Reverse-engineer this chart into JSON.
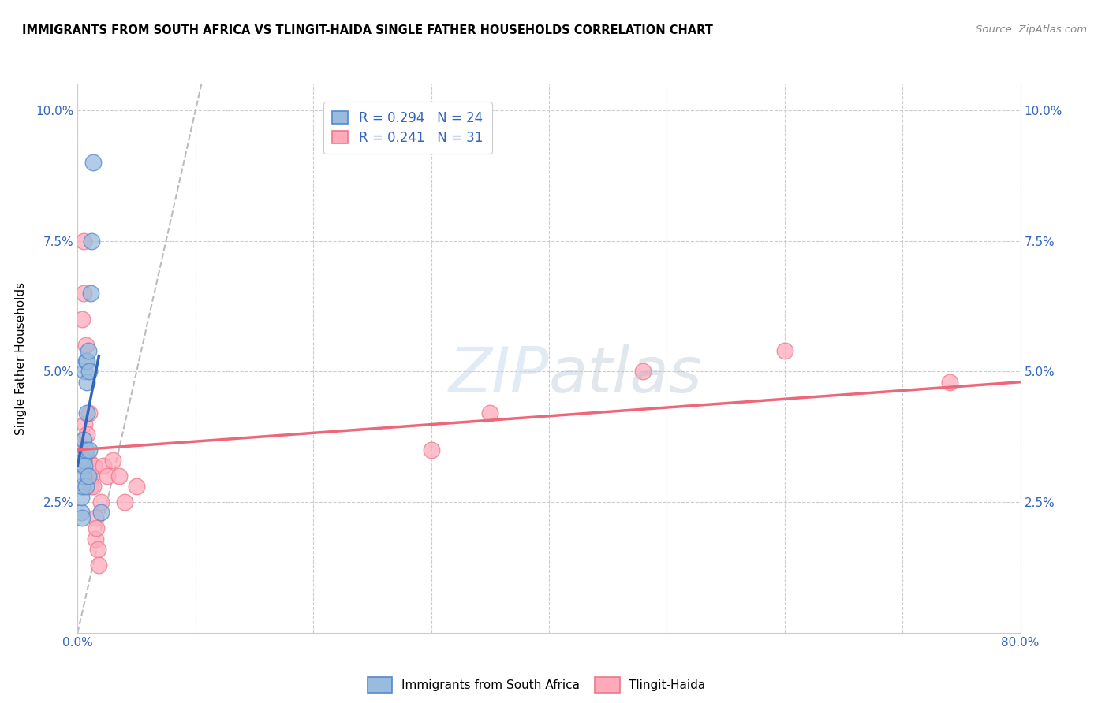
{
  "title": "IMMIGRANTS FROM SOUTH AFRICA VS TLINGIT-HAIDA SINGLE FATHER HOUSEHOLDS CORRELATION CHART",
  "source": "Source: ZipAtlas.com",
  "ylabel": "Single Father Households",
  "xlim": [
    0.0,
    0.8
  ],
  "ylim": [
    0.0,
    0.105
  ],
  "xticks": [
    0.0,
    0.1,
    0.2,
    0.3,
    0.4,
    0.5,
    0.6,
    0.7,
    0.8
  ],
  "xticklabels": [
    "0.0%",
    "",
    "",
    "",
    "",
    "",
    "",
    "",
    "80.0%"
  ],
  "yticks": [
    0.025,
    0.05,
    0.075,
    0.1
  ],
  "yticklabels": [
    "2.5%",
    "5.0%",
    "7.5%",
    "10.0%"
  ],
  "legend_r1": "0.294",
  "legend_n1": "24",
  "legend_r2": "0.241",
  "legend_n2": "31",
  "legend_label1": "Immigrants from South Africa",
  "legend_label2": "Tlingit-Haida",
  "color_blue_fill": "#99BBDD",
  "color_blue_edge": "#5588CC",
  "color_pink_fill": "#FFAABB",
  "color_pink_edge": "#EE7788",
  "color_line_blue": "#3366BB",
  "color_line_pink": "#EE6677",
  "color_diag": "#BBBBBB",
  "watermark_color": "#C5D8EC",
  "blue_x": [
    0.003,
    0.003,
    0.004,
    0.004,
    0.004,
    0.005,
    0.005,
    0.005,
    0.006,
    0.006,
    0.007,
    0.007,
    0.007,
    0.008,
    0.008,
    0.008,
    0.009,
    0.009,
    0.01,
    0.01,
    0.011,
    0.012,
    0.013,
    0.02
  ],
  "blue_y": [
    0.023,
    0.026,
    0.022,
    0.028,
    0.032,
    0.03,
    0.033,
    0.037,
    0.032,
    0.05,
    0.028,
    0.035,
    0.052,
    0.042,
    0.048,
    0.052,
    0.03,
    0.054,
    0.035,
    0.05,
    0.065,
    0.075,
    0.09,
    0.023
  ],
  "pink_x": [
    0.002,
    0.004,
    0.005,
    0.005,
    0.006,
    0.007,
    0.008,
    0.009,
    0.01,
    0.01,
    0.011,
    0.012,
    0.013,
    0.014,
    0.015,
    0.015,
    0.016,
    0.017,
    0.018,
    0.02,
    0.022,
    0.025,
    0.03,
    0.035,
    0.04,
    0.05,
    0.3,
    0.35,
    0.48,
    0.6,
    0.74
  ],
  "pink_y": [
    0.036,
    0.06,
    0.075,
    0.065,
    0.04,
    0.055,
    0.038,
    0.033,
    0.03,
    0.042,
    0.028,
    0.03,
    0.028,
    0.032,
    0.018,
    0.022,
    0.02,
    0.016,
    0.013,
    0.025,
    0.032,
    0.03,
    0.033,
    0.03,
    0.025,
    0.028,
    0.035,
    0.042,
    0.05,
    0.054,
    0.048
  ],
  "blue_line_x": [
    0.0,
    0.018
  ],
  "blue_line_y": [
    0.032,
    0.053
  ],
  "pink_line_x": [
    0.0,
    0.8
  ],
  "pink_line_y": [
    0.035,
    0.048
  ]
}
